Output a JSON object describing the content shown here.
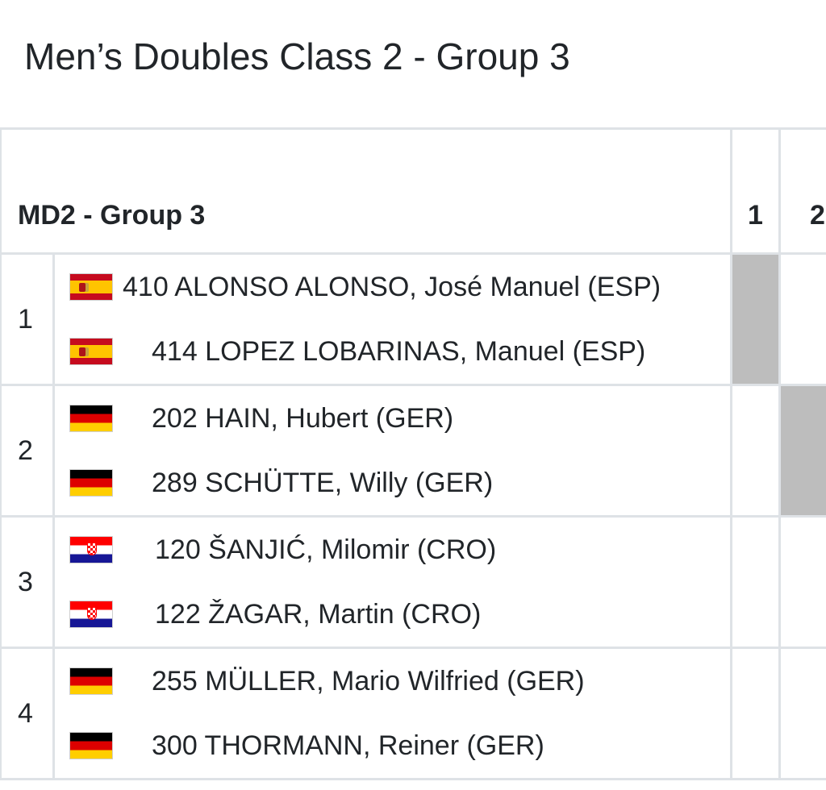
{
  "page_title": "Men’s Doubles Class 2 - Group 3",
  "table": {
    "group_label": "MD2 - Group 3",
    "column_headers": [
      "1",
      "2"
    ],
    "teams": [
      {
        "seed": "1",
        "players": [
          {
            "flag": "esp",
            "flag_icon": "spain-flag-icon",
            "name": "410 ALONSO ALONSO, José Manuel (ESP)"
          },
          {
            "flag": "esp",
            "flag_icon": "spain-flag-icon",
            "name": "414 LOPEZ LOBARINAS, Manuel (ESP)"
          }
        ]
      },
      {
        "seed": "2",
        "players": [
          {
            "flag": "ger",
            "flag_icon": "germany-flag-icon",
            "name": "202 HAIN, Hubert (GER)"
          },
          {
            "flag": "ger",
            "flag_icon": "germany-flag-icon",
            "name": "289 SCHÜTTE, Willy (GER)"
          }
        ]
      },
      {
        "seed": "3",
        "players": [
          {
            "flag": "cro",
            "flag_icon": "croatia-flag-icon",
            "name": "120 ŠANJIĆ, Milomir (CRO)"
          },
          {
            "flag": "cro",
            "flag_icon": "croatia-flag-icon",
            "name": "122 ŽAGAR, Martin (CRO)"
          }
        ]
      },
      {
        "seed": "4",
        "players": [
          {
            "flag": "ger",
            "flag_icon": "germany-flag-icon",
            "name": "255 MÜLLER, Mario Wilfried (GER)"
          },
          {
            "flag": "ger",
            "flag_icon": "germany-flag-icon",
            "name": "300 THORMANN, Reiner (GER)"
          }
        ]
      }
    ]
  },
  "colors": {
    "text": "#212529",
    "border": "#dee2e6",
    "self_match_cell": "#bdbdbd"
  }
}
